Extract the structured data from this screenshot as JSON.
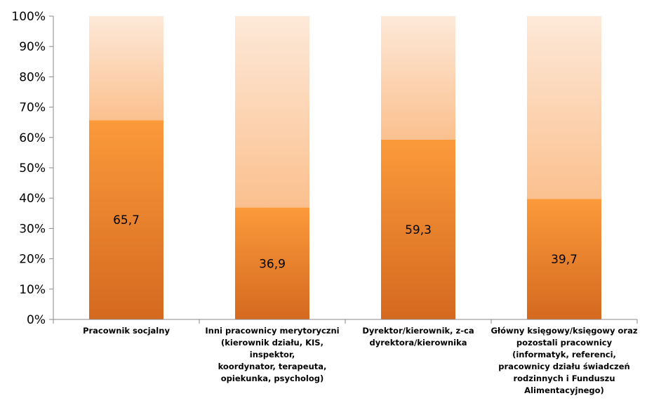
{
  "chart_data": {
    "type": "bar",
    "stacked": true,
    "percent": true,
    "categories": [
      "Pracownik socjalny",
      "Inni pracownicy merytoryczni\n(kierownik działu, KIS, inspektor,\nkoordynator, terapeuta,\nopiekunka, psycholog)",
      "Dyrektor/kierownik, z-ca\ndyrektora/kierownika",
      "Główny księgowy/księgowy oraz\npozostali pracownicy\n(informatyk, referenci,\npracownicy działu świadczeń\nrodzinnych i Funduszu\nAlimentacyjnego)"
    ],
    "series": [
      {
        "values": [
          65.7,
          36.9,
          59.3,
          39.7
        ],
        "color": "#f5882a"
      },
      {
        "values": [
          34.3,
          63.1,
          40.7,
          60.3
        ],
        "color": "#fbc79b"
      }
    ],
    "data_labels": [
      "65,7",
      "36,9",
      "59,3",
      "39,7"
    ],
    "ylim": [
      0,
      100
    ],
    "yticks": [
      "0%",
      "10%",
      "20%",
      "30%",
      "40%",
      "50%",
      "60%",
      "70%",
      "80%",
      "90%",
      "100%"
    ],
    "title": "",
    "xlabel": "",
    "ylabel": "",
    "grid": false,
    "legend": "none"
  }
}
